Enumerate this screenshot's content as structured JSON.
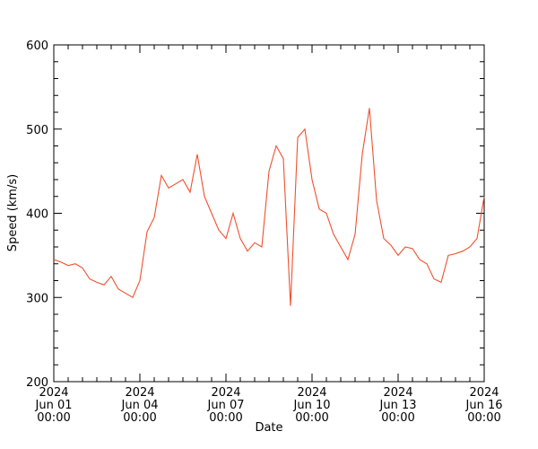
{
  "chart_data": {
    "type": "line",
    "xlabel": "Date",
    "ylabel": "Speed (km/s)",
    "x_range": [
      "2024-06-01 00:00",
      "2024-06-16 00:00"
    ],
    "ylim": [
      200,
      600
    ],
    "y_ticks": [
      200,
      300,
      400,
      500,
      600
    ],
    "x_ticks": [
      {
        "date": "2024-06-01 00:00",
        "label": [
          "2024",
          "Jun 01",
          "00:00"
        ]
      },
      {
        "date": "2024-06-04 00:00",
        "label": [
          "2024",
          "Jun 04",
          "00:00"
        ]
      },
      {
        "date": "2024-06-07 00:00",
        "label": [
          "2024",
          "Jun 07",
          "00:00"
        ]
      },
      {
        "date": "2024-06-10 00:00",
        "label": [
          "2024",
          "Jun 10",
          "00:00"
        ]
      },
      {
        "date": "2024-06-13 00:00",
        "label": [
          "2024",
          "Jun 13",
          "00:00"
        ]
      },
      {
        "date": "2024-06-16 00:00",
        "label": [
          "2024",
          "Jun 16",
          "00:00"
        ]
      }
    ],
    "grid": false,
    "line_color": "#f0502d",
    "series": [
      {
        "x": [
          "2024-06-01 00:00",
          "2024-06-01 06:00",
          "2024-06-01 12:00",
          "2024-06-01 18:00",
          "2024-06-02 00:00",
          "2024-06-02 06:00",
          "2024-06-02 12:00",
          "2024-06-02 18:00",
          "2024-06-03 00:00",
          "2024-06-03 06:00",
          "2024-06-03 12:00",
          "2024-06-03 18:00",
          "2024-06-04 00:00",
          "2024-06-04 06:00",
          "2024-06-04 12:00",
          "2024-06-04 18:00",
          "2024-06-05 00:00",
          "2024-06-05 06:00",
          "2024-06-05 12:00",
          "2024-06-05 18:00",
          "2024-06-06 00:00",
          "2024-06-06 06:00",
          "2024-06-06 12:00",
          "2024-06-06 18:00",
          "2024-06-07 00:00",
          "2024-06-07 06:00",
          "2024-06-07 12:00",
          "2024-06-07 18:00",
          "2024-06-08 00:00",
          "2024-06-08 06:00",
          "2024-06-08 12:00",
          "2024-06-08 18:00",
          "2024-06-09 00:00",
          "2024-06-09 06:00",
          "2024-06-09 12:00",
          "2024-06-09 18:00",
          "2024-06-10 00:00",
          "2024-06-10 06:00",
          "2024-06-10 12:00",
          "2024-06-10 18:00",
          "2024-06-11 00:00",
          "2024-06-11 06:00",
          "2024-06-11 12:00",
          "2024-06-11 18:00",
          "2024-06-12 00:00",
          "2024-06-12 06:00",
          "2024-06-12 12:00",
          "2024-06-12 18:00",
          "2024-06-13 00:00",
          "2024-06-13 06:00",
          "2024-06-13 12:00",
          "2024-06-13 18:00",
          "2024-06-14 00:00",
          "2024-06-14 06:00",
          "2024-06-14 12:00",
          "2024-06-14 18:00",
          "2024-06-15 00:00",
          "2024-06-15 06:00",
          "2024-06-15 12:00",
          "2024-06-15 18:00",
          "2024-06-16 00:00"
        ],
        "values": [
          345,
          342,
          338,
          340,
          335,
          322,
          318,
          315,
          325,
          310,
          305,
          300,
          320,
          378,
          395,
          445,
          430,
          435,
          440,
          425,
          470,
          420,
          400,
          380,
          370,
          400,
          370,
          355,
          365,
          360,
          450,
          480,
          465,
          290,
          490,
          500,
          440,
          405,
          400,
          375,
          360,
          345,
          375,
          470,
          525,
          415,
          370,
          362,
          350,
          360,
          358,
          345,
          340,
          322,
          318,
          350,
          352,
          355,
          360,
          370,
          420
        ]
      }
    ]
  }
}
